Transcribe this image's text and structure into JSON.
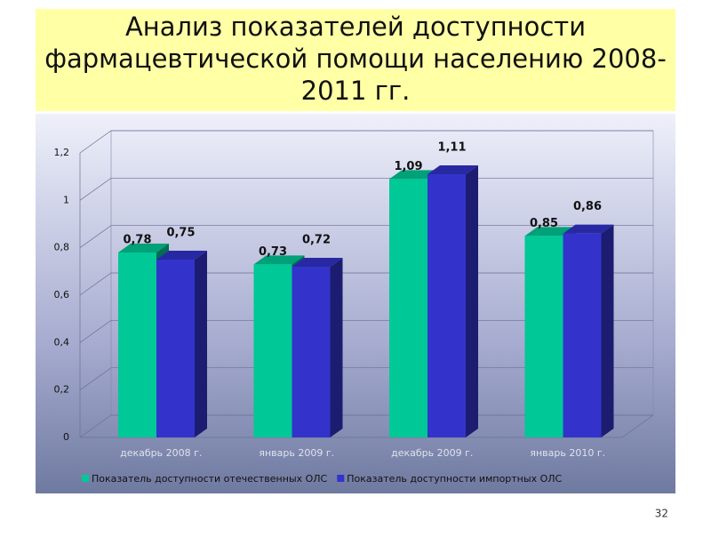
{
  "chart_data": {
    "type": "bar3d",
    "title": "Анализ показателей доступности фармацевтической помощи населению 2008-2011 гг.",
    "categories": [
      "декабрь 2008 г.",
      "январь 2009 г.",
      "декабрь 2009 г.",
      "январь 2010 г."
    ],
    "series": [
      {
        "name": "Показатель доступности отечественных ОЛС",
        "color": "#00c896",
        "values": [
          0.78,
          0.73,
          1.09,
          0.85
        ],
        "value_labels": [
          "0,78",
          "0,73",
          "1,09",
          "0,85"
        ]
      },
      {
        "name": "Показатель доступности импортных ОЛС",
        "color": "#3333cc",
        "values": [
          0.75,
          0.72,
          1.11,
          0.86
        ],
        "value_labels": [
          "0,75",
          "0,72",
          "1,11",
          "0,86"
        ]
      }
    ],
    "ylim": [
      0,
      1.2
    ],
    "yticks": [
      0,
      {
        "value": 0.2,
        "label": "0,2"
      },
      {
        "value": 0.4,
        "label": "0,4"
      },
      {
        "value": 0.6,
        "label": "0,6"
      },
      {
        "value": 0.8,
        "label": "0,8"
      },
      1,
      {
        "value": 1.2,
        "label": "1,2"
      }
    ],
    "grid": true,
    "legend": "bottom"
  },
  "page_number": "32"
}
